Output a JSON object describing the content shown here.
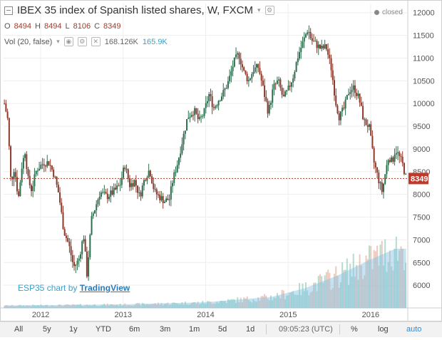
{
  "legend": {
    "title": "IBEX 35 index of Spanish listed shares, W, FXCM",
    "ohlc": [
      {
        "k": "O",
        "v": "8494"
      },
      {
        "k": "H",
        "v": "8494"
      },
      {
        "k": "L",
        "v": "8106"
      },
      {
        "k": "C",
        "v": "8349"
      }
    ],
    "vol_label": "Vol (20, false)",
    "vol_value": "168.126K",
    "vol_ma": "165.9K"
  },
  "status": "closed",
  "watermark": {
    "prefix": "ESP35 chart by",
    "brand": "TradingView"
  },
  "toolbar": {
    "ranges": [
      "All",
      "5y",
      "1y",
      "YTD",
      "6m",
      "3m",
      "1m",
      "5d",
      "1d"
    ],
    "time": "09:05:23 (UTC)",
    "percent": "%",
    "log": "log",
    "auto": "auto"
  },
  "colors": {
    "up": "#2d6e4f",
    "down": "#8b3a2c",
    "vol_up": "#9ed0bd",
    "vol_down": "#e9b7a7",
    "vol_ma": "#7fc3e6",
    "last_price": "#c0392b"
  },
  "chart_data": {
    "type": "candlestick",
    "interval": "W",
    "last_price": 8349,
    "ylim": [
      5500,
      12200
    ],
    "y_ticks": [
      6000,
      6500,
      7000,
      7500,
      8000,
      8500,
      9000,
      9500,
      10000,
      10500,
      11000,
      11500,
      12000
    ],
    "x_ticks": [
      "2012",
      "2013",
      "2014",
      "2015",
      "2016"
    ],
    "x_tick_years": [
      2012,
      2013,
      2014,
      2015,
      2016
    ],
    "x_range": [
      2011.55,
      2016.45
    ],
    "close_path": [
      [
        2011.56,
        10000
      ],
      [
        2011.6,
        9650
      ],
      [
        2011.64,
        8250
      ],
      [
        2011.68,
        8600
      ],
      [
        2011.73,
        7900
      ],
      [
        2011.77,
        8600
      ],
      [
        2011.81,
        8950
      ],
      [
        2011.85,
        8300
      ],
      [
        2011.89,
        8100
      ],
      [
        2011.95,
        8550
      ],
      [
        2012.04,
        8700
      ],
      [
        2012.1,
        8700
      ],
      [
        2012.16,
        8450
      ],
      [
        2012.22,
        8000
      ],
      [
        2012.28,
        7200
      ],
      [
        2012.34,
        6900
      ],
      [
        2012.4,
        6400
      ],
      [
        2012.46,
        6550
      ],
      [
        2012.52,
        7100
      ],
      [
        2012.56,
        6250
      ],
      [
        2012.62,
        7500
      ],
      [
        2012.66,
        7700
      ],
      [
        2012.72,
        8050
      ],
      [
        2012.8,
        7950
      ],
      [
        2012.88,
        8050
      ],
      [
        2012.96,
        8200
      ],
      [
        2013.02,
        8650
      ],
      [
        2013.08,
        8200
      ],
      [
        2013.14,
        8300
      ],
      [
        2013.2,
        7950
      ],
      [
        2013.26,
        8350
      ],
      [
        2013.32,
        8550
      ],
      [
        2013.38,
        8050
      ],
      [
        2013.44,
        7950
      ],
      [
        2013.5,
        7850
      ],
      [
        2013.56,
        7900
      ],
      [
        2013.6,
        8300
      ],
      [
        2013.66,
        8700
      ],
      [
        2013.72,
        9200
      ],
      [
        2013.78,
        9700
      ],
      [
        2013.86,
        9850
      ],
      [
        2013.92,
        9600
      ],
      [
        2013.98,
        9800
      ],
      [
        2014.04,
        10200
      ],
      [
        2014.1,
        9900
      ],
      [
        2014.16,
        10100
      ],
      [
        2014.22,
        10250
      ],
      [
        2014.28,
        10500
      ],
      [
        2014.34,
        10900
      ],
      [
        2014.4,
        11100
      ],
      [
        2014.46,
        10700
      ],
      [
        2014.52,
        10500
      ],
      [
        2014.58,
        10750
      ],
      [
        2014.64,
        10800
      ],
      [
        2014.7,
        10300
      ],
      [
        2014.76,
        9800
      ],
      [
        2014.82,
        10350
      ],
      [
        2014.88,
        10500
      ],
      [
        2014.94,
        10100
      ],
      [
        2015.0,
        10300
      ],
      [
        2015.06,
        10600
      ],
      [
        2015.12,
        11050
      ],
      [
        2015.2,
        11450
      ],
      [
        2015.24,
        11650
      ],
      [
        2015.28,
        11400
      ],
      [
        2015.34,
        11300
      ],
      [
        2015.4,
        11200
      ],
      [
        2015.46,
        11250
      ],
      [
        2015.52,
        10800
      ],
      [
        2015.58,
        10000
      ],
      [
        2015.62,
        9700
      ],
      [
        2015.68,
        9900
      ],
      [
        2015.74,
        10300
      ],
      [
        2015.8,
        10350
      ],
      [
        2015.86,
        10100
      ],
      [
        2015.92,
        9600
      ],
      [
        2015.98,
        9500
      ],
      [
        2016.04,
        8700
      ],
      [
        2016.1,
        8300
      ],
      [
        2016.14,
        8050
      ],
      [
        2016.18,
        8500
      ],
      [
        2016.22,
        8850
      ],
      [
        2016.26,
        8700
      ],
      [
        2016.3,
        9000
      ],
      [
        2016.34,
        8850
      ],
      [
        2016.38,
        8700
      ],
      [
        2016.41,
        8500
      ],
      [
        2016.43,
        8349
      ]
    ],
    "volume_envelope": [
      [
        2011.56,
        0.02
      ],
      [
        2013.0,
        0.03
      ],
      [
        2014.0,
        0.05
      ],
      [
        2014.8,
        0.1
      ],
      [
        2015.2,
        0.18
      ],
      [
        2015.6,
        0.3
      ],
      [
        2016.0,
        0.45
      ],
      [
        2016.3,
        0.55
      ],
      [
        2016.43,
        0.55
      ]
    ]
  }
}
